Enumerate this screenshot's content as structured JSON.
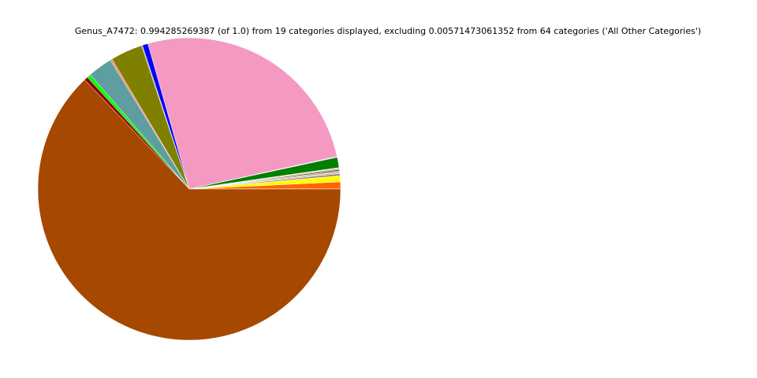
{
  "chart_data": {
    "type": "pie",
    "title": "Genus_A7472: 0.994285269387 (of 1.0) from 19 categories displayed, excluding 0.00571473061352 from 64 categories ('All Other Categories')",
    "values": [
      0.0075,
      0.0065,
      0.002,
      0.0015,
      0.0015,
      0.0015,
      0.001,
      0.001,
      0.011,
      0.001,
      0.258,
      0.006,
      0.001,
      0.034,
      0.002,
      0.026,
      0.004,
      0.004,
      0.625
    ],
    "colors": [
      "#ff6600",
      "#ffff00",
      "#808080",
      "#d2b48c",
      "#a9a9a9",
      "#8b4513",
      "#708090",
      "#f0e68c",
      "#007f00",
      "#d3d3d3",
      "#f49ac2",
      "#0000ff",
      "#808080",
      "#808000",
      "#fa8072",
      "#5f9ea0",
      "#00ff00",
      "#8b0000",
      "#a64800"
    ]
  }
}
